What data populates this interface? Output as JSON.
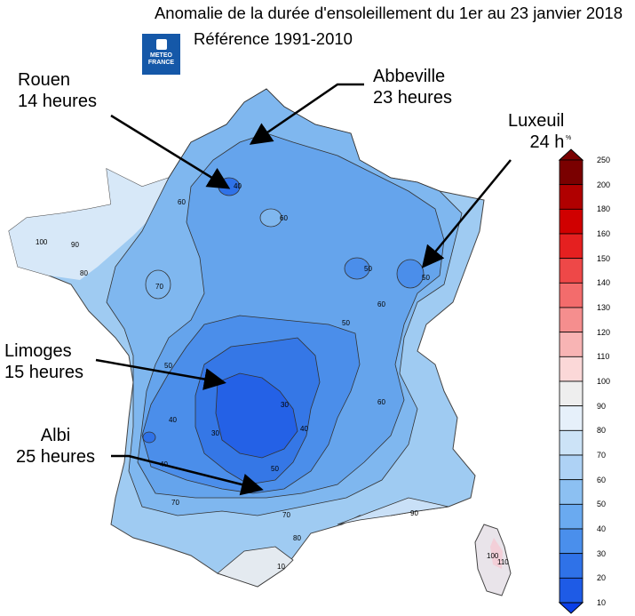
{
  "title": {
    "line1": "Anomalie de la durée d'ensoleillement du 1er au 23 janvier 2018",
    "line2": "Référence 1991-2010"
  },
  "logo": {
    "text_line1": "METEO",
    "text_line2": "FRANCE",
    "icon": "meteo-france-logo"
  },
  "annotations": [
    {
      "name": "rouen",
      "line1": "Rouen",
      "line2": "14 heures"
    },
    {
      "name": "abbeville",
      "line1": "Abbeville",
      "line2": "23 heures"
    },
    {
      "name": "luxeuil",
      "line1": "Luxeuil",
      "line2": "24 h"
    },
    {
      "name": "limoges",
      "line1": "Limoges",
      "line2": "15 heures"
    },
    {
      "name": "albi",
      "line1": "Albi",
      "line2": "25 heures"
    }
  ],
  "contour_labels": [
    "40",
    "60",
    "100",
    "90",
    "80",
    "70",
    "60",
    "50",
    "50",
    "50",
    "60",
    "50",
    "40",
    "30",
    "30",
    "40",
    "40",
    "50",
    "60",
    "70",
    "70",
    "80",
    "90",
    "100",
    "110",
    "10"
  ],
  "legend": {
    "unit": "%",
    "ticks": [
      "250",
      "200",
      "180",
      "160",
      "150",
      "140",
      "130",
      "120",
      "110",
      "100",
      "90",
      "80",
      "70",
      "60",
      "50",
      "40",
      "30",
      "20",
      "10"
    ],
    "colors": [
      "#7a0000",
      "#b00000",
      "#d00000",
      "#e52020",
      "#ee4848",
      "#f36c6c",
      "#f58e8e",
      "#f8b4b4",
      "#fbd8d8",
      "#eeeeee",
      "#e6f0fa",
      "#cce3f7",
      "#aed2f5",
      "#8cc0f2",
      "#6aaaf0",
      "#4a8fec",
      "#2f72e8",
      "#1e5be6",
      "#0a3ee8"
    ]
  }
}
